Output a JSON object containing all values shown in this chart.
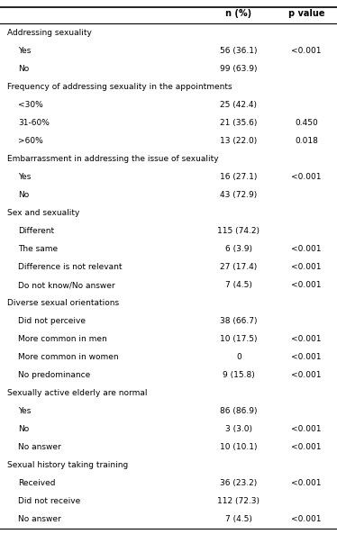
{
  "col_headers": [
    "n (%)",
    "p value"
  ],
  "rows": [
    {
      "label": "Addressing sexuality",
      "indent": 0,
      "n": "",
      "p": ""
    },
    {
      "label": "Yes",
      "indent": 1,
      "n": "56 (36.1)",
      "p": "<0.001"
    },
    {
      "label": "No",
      "indent": 1,
      "n": "99 (63.9)",
      "p": ""
    },
    {
      "label": "Frequency of addressing sexuality in the appointments",
      "indent": 0,
      "n": "",
      "p": ""
    },
    {
      "label": "<30%",
      "indent": 1,
      "n": "25 (42.4)",
      "p": ""
    },
    {
      "label": "31-60%",
      "indent": 1,
      "n": "21 (35.6)",
      "p": "0.450"
    },
    {
      "label": ">60%",
      "indent": 1,
      "n": "13 (22.0)",
      "p": "0.018"
    },
    {
      "label": "Embarrassment in addressing the issue of sexuality",
      "indent": 0,
      "n": "",
      "p": ""
    },
    {
      "label": "Yes",
      "indent": 1,
      "n": "16 (27.1)",
      "p": "<0.001"
    },
    {
      "label": "No",
      "indent": 1,
      "n": "43 (72.9)",
      "p": ""
    },
    {
      "label": "Sex and sexuality",
      "indent": 0,
      "n": "",
      "p": ""
    },
    {
      "label": "Different",
      "indent": 1,
      "n": "115 (74.2)",
      "p": ""
    },
    {
      "label": "The same",
      "indent": 1,
      "n": "6 (3.9)",
      "p": "<0.001"
    },
    {
      "label": "Difference is not relevant",
      "indent": 1,
      "n": "27 (17.4)",
      "p": "<0.001"
    },
    {
      "label": "Do not know/No answer",
      "indent": 1,
      "n": "7 (4.5)",
      "p": "<0.001"
    },
    {
      "label": "Diverse sexual orientations",
      "indent": 0,
      "n": "",
      "p": ""
    },
    {
      "label": "Did not perceive",
      "indent": 1,
      "n": "38 (66.7)",
      "p": ""
    },
    {
      "label": "More common in men",
      "indent": 1,
      "n": "10 (17.5)",
      "p": "<0.001"
    },
    {
      "label": "More common in women",
      "indent": 1,
      "n": "0",
      "p": "<0.001"
    },
    {
      "label": "No predominance",
      "indent": 1,
      "n": "9 (15.8)",
      "p": "<0.001"
    },
    {
      "label": "Sexually active elderly are normal",
      "indent": 0,
      "n": "",
      "p": ""
    },
    {
      "label": "Yes",
      "indent": 1,
      "n": "86 (86.9)",
      "p": ""
    },
    {
      "label": "No",
      "indent": 1,
      "n": "3 (3.0)",
      "p": "<0.001"
    },
    {
      "label": "No answer",
      "indent": 1,
      "n": "10 (10.1)",
      "p": "<0.001"
    },
    {
      "label": "Sexual history taking training",
      "indent": 0,
      "n": "",
      "p": ""
    },
    {
      "label": "Received",
      "indent": 1,
      "n": "36 (23.2)",
      "p": "<0.001"
    },
    {
      "label": "Did not receive",
      "indent": 1,
      "n": "112 (72.3)",
      "p": ""
    },
    {
      "label": "No answer",
      "indent": 1,
      "n": "7 (4.5)",
      "p": "<0.001"
    }
  ],
  "bg_color": "#ffffff",
  "line_color": "#000000",
  "font_size": 6.5,
  "header_font_size": 7.0,
  "fig_width": 3.74,
  "fig_height": 5.93,
  "dpi": 100
}
